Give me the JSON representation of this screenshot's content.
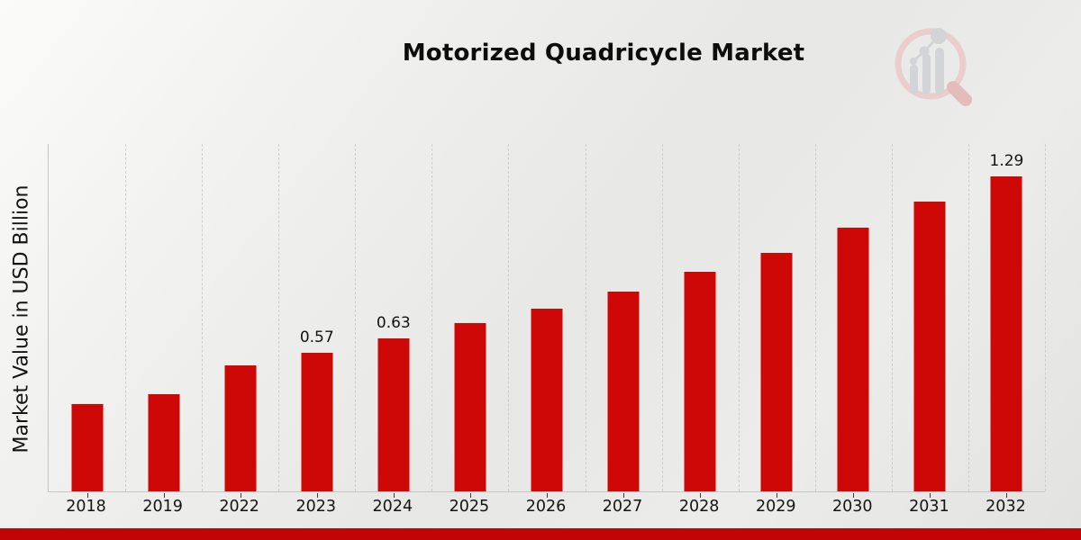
{
  "chart_data": {
    "type": "bar",
    "title": "Motorized Quadricycle Market",
    "xlabel": "",
    "ylabel": "Market Value in USD Billion",
    "categories": [
      "2018",
      "2019",
      "2022",
      "2023",
      "2024",
      "2025",
      "2026",
      "2027",
      "2028",
      "2029",
      "2030",
      "2031",
      "2032"
    ],
    "values": [
      0.36,
      0.4,
      0.52,
      0.57,
      0.63,
      0.69,
      0.75,
      0.82,
      0.9,
      0.98,
      1.08,
      1.19,
      1.29
    ],
    "data_labels": {
      "2023": "0.57",
      "2024": "0.63",
      "2032": "1.29"
    },
    "ylim": [
      0,
      1.42
    ],
    "grid": "vertical-dashed",
    "legend": "none"
  },
  "colors": {
    "bar": "#ce0707",
    "bar_edge": "#ececea",
    "bottom_strip": "#c10505",
    "watermark_ring": "#ebcdcc",
    "watermark_handle": "#e3bdbc",
    "watermark_gray": "#d3d4d7"
  },
  "icons": {
    "watermark": "magnifier-bar-chart-icon"
  }
}
